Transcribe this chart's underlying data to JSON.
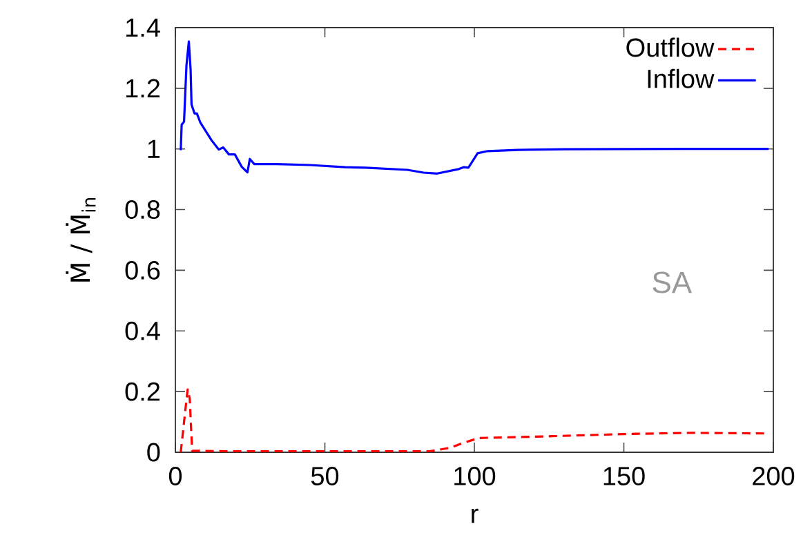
{
  "chart_data": {
    "type": "line",
    "xlabel": "r",
    "ylabel": "Ṁ / Ṁ$_{in}$",
    "xlim": [
      0,
      200
    ],
    "ylim": [
      0,
      1.4
    ],
    "xticks": [
      0,
      50,
      100,
      150,
      200
    ],
    "yticks": [
      0,
      0.2,
      0.4,
      0.6,
      0.8,
      1,
      1.2,
      1.4
    ],
    "legend": "top right",
    "annotations": [
      "SA"
    ],
    "series": [
      {
        "name": "Outflow",
        "color": "#ff0000",
        "line_style": "dashed",
        "x": [
          1.8,
          2.9,
          4.1,
          4.8,
          5.6,
          20,
          50,
          85,
          92,
          96,
          101.5,
          126,
          150,
          172.3,
          196.9
        ],
        "values": [
          0,
          0.1,
          0.207,
          0.177,
          0.005,
          0.003,
          0.003,
          0.003,
          0.015,
          0.03,
          0.047,
          0.053,
          0.06,
          0.064,
          0.062
        ]
      },
      {
        "name": "Inflow",
        "color": "#0000ff",
        "line_style": "solid",
        "x": [
          1.8,
          2.1,
          2.9,
          3.7,
          4.5,
          5.1,
          5.4,
          6.4,
          7.2,
          8.3,
          12.2,
          14.5,
          16,
          17.9,
          19.9,
          22.2,
          24.1,
          24.9,
          25.6,
          26.4,
          33.7,
          45,
          56.8,
          63.7,
          77.6,
          83,
          87.6,
          94.5,
          96.5,
          98,
          101.1,
          104.5,
          114.5,
          130,
          170,
          198.4
        ],
        "values": [
          0.996,
          1.08,
          1.09,
          1.275,
          1.354,
          1.26,
          1.147,
          1.117,
          1.117,
          1.088,
          1.027,
          0.998,
          1.005,
          0.982,
          0.982,
          0.941,
          0.923,
          0.967,
          0.959,
          0.95,
          0.95,
          0.947,
          0.94,
          0.938,
          0.931,
          0.922,
          0.919,
          0.933,
          0.94,
          0.938,
          0.986,
          0.993,
          0.997,
          0.999,
          1.0,
          1.0
        ]
      }
    ]
  }
}
